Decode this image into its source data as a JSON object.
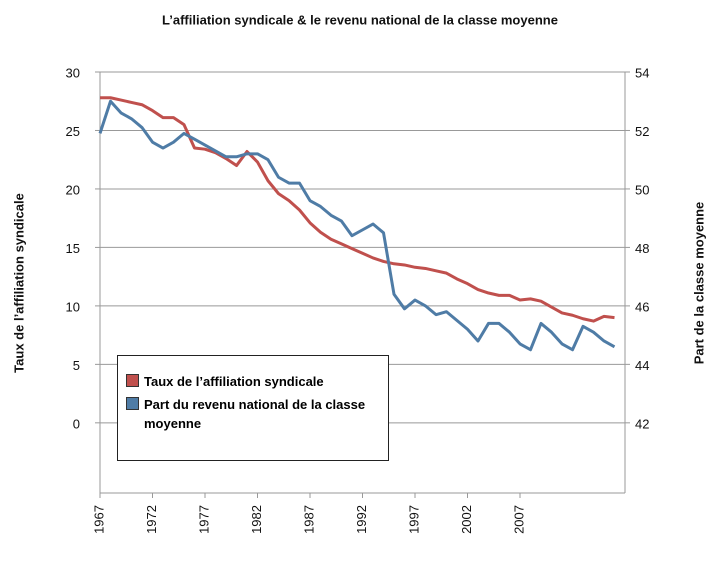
{
  "chart_data": {
    "type": "line",
    "title": "L’affiliation syndicale & le revenu national de la classe moyenne",
    "y_label": "Taux de l’affiliation syndicale",
    "y2_label": "Part de la classe moyenne",
    "x": [
      1967,
      1968,
      1969,
      1970,
      1971,
      1972,
      1973,
      1974,
      1975,
      1976,
      1977,
      1978,
      1979,
      1980,
      1981,
      1982,
      1983,
      1984,
      1985,
      1986,
      1987,
      1988,
      1989,
      1990,
      1991,
      1992,
      1993,
      1994,
      1995,
      1996,
      1997,
      1998,
      1999,
      2000,
      2001,
      2002,
      2003,
      2004,
      2005,
      2006,
      2007,
      2008,
      2009,
      2010,
      2011,
      2012,
      2013,
      2014,
      2015,
      2016
    ],
    "series": [
      {
        "name": "Taux de l’affiliation syndicale",
        "color": "#c0504d",
        "axis": "y",
        "values": [
          27.8,
          27.8,
          27.6,
          27.4,
          27.2,
          26.7,
          26.1,
          26.1,
          25.5,
          23.5,
          23.4,
          23.1,
          22.6,
          22.0,
          23.2,
          22.3,
          20.7,
          19.6,
          19.0,
          18.2,
          17.1,
          16.3,
          15.7,
          15.3,
          14.9,
          14.5,
          14.1,
          13.8,
          13.6,
          13.5,
          13.3,
          13.2,
          13.0,
          12.8,
          12.3,
          11.9,
          11.4,
          11.1,
          10.9,
          10.9,
          10.5,
          10.6,
          10.4,
          9.9,
          9.4,
          9.2,
          8.9,
          8.7,
          9.1,
          9.0
        ]
      },
      {
        "name": "Part du revenu national de la classe moyenne",
        "color": "#4f7ca6",
        "axis": "y2",
        "values": [
          51.9,
          53.0,
          52.6,
          52.4,
          52.1,
          51.6,
          51.4,
          51.6,
          51.9,
          51.7,
          51.5,
          51.3,
          51.1,
          51.1,
          51.2,
          51.2,
          51.0,
          50.4,
          50.2,
          50.2,
          49.6,
          49.4,
          49.1,
          48.9,
          48.4,
          48.6,
          48.8,
          48.5,
          46.4,
          45.9,
          46.2,
          46.0,
          45.7,
          45.8,
          45.5,
          45.2,
          44.8,
          45.4,
          45.4,
          45.1,
          44.7,
          44.5,
          45.4,
          45.1,
          44.7,
          44.5,
          45.3,
          45.1,
          44.8,
          44.6
        ]
      }
    ],
    "xlim": [
      1967,
      2017
    ],
    "xticks": [
      1967,
      1972,
      1977,
      1982,
      1987,
      1992,
      1997,
      2002,
      2007
    ],
    "ylim": [
      -6,
      30
    ],
    "yticks": [
      0,
      5,
      10,
      15,
      20,
      25,
      30
    ],
    "y2lim": [
      39.6,
      54
    ],
    "y2ticks": [
      42,
      44,
      46,
      48,
      50,
      52,
      54
    ],
    "grid": true
  }
}
